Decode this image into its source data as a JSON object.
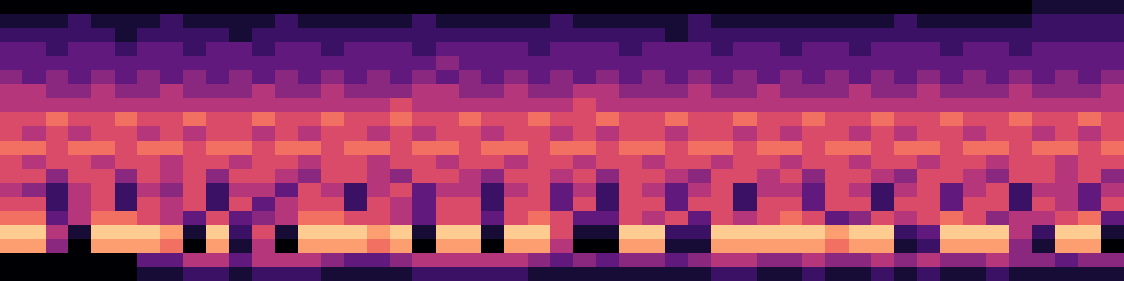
{
  "chart_data": {
    "type": "heatmap",
    "tick_labels": false,
    "color": "magma",
    "color_range": [
      0,
      10
    ],
    "cells": [
      [
        0,
        0,
        0,
        0,
        0,
        0,
        0,
        0,
        0,
        0,
        0,
        0,
        0,
        0,
        0,
        0,
        0,
        0,
        0,
        0,
        0,
        0,
        0,
        0,
        0,
        0,
        0,
        0,
        0,
        0,
        0,
        0,
        0,
        0,
        0,
        0,
        0,
        0,
        0,
        0,
        0,
        0,
        0,
        0,
        0,
        1,
        1,
        1,
        1
      ],
      [
        1,
        1,
        1,
        2,
        1,
        1,
        1,
        2,
        1,
        1,
        1,
        1,
        2,
        1,
        1,
        1,
        1,
        1,
        2,
        1,
        1,
        1,
        1,
        1,
        2,
        1,
        1,
        1,
        1,
        1,
        2,
        1,
        1,
        1,
        1,
        1,
        1,
        1,
        1,
        2,
        1,
        1,
        1,
        1,
        1,
        2,
        2,
        2,
        2
      ],
      [
        2,
        2,
        2,
        2,
        2,
        1,
        2,
        2,
        2,
        2,
        1,
        2,
        2,
        2,
        2,
        2,
        2,
        2,
        2,
        2,
        2,
        2,
        2,
        2,
        2,
        2,
        2,
        2,
        2,
        1,
        2,
        2,
        2,
        2,
        2,
        2,
        2,
        2,
        2,
        2,
        2,
        2,
        2,
        2,
        2,
        2,
        2,
        2,
        2
      ],
      [
        3,
        3,
        2,
        3,
        3,
        2,
        3,
        3,
        2,
        3,
        3,
        2,
        3,
        3,
        2,
        3,
        3,
        3,
        2,
        3,
        3,
        3,
        3,
        2,
        3,
        3,
        3,
        2,
        3,
        3,
        3,
        2,
        3,
        3,
        2,
        3,
        3,
        2,
        3,
        3,
        3,
        2,
        3,
        3,
        2,
        3,
        3,
        3,
        3
      ],
      [
        3,
        3,
        3,
        3,
        3,
        3,
        3,
        3,
        3,
        3,
        3,
        3,
        3,
        3,
        3,
        3,
        3,
        3,
        3,
        4,
        3,
        3,
        3,
        3,
        3,
        3,
        3,
        3,
        3,
        3,
        3,
        3,
        3,
        3,
        3,
        3,
        3,
        3,
        3,
        3,
        3,
        3,
        3,
        3,
        3,
        3,
        3,
        3,
        3
      ],
      [
        4,
        3,
        4,
        3,
        4,
        3,
        4,
        3,
        4,
        3,
        4,
        3,
        4,
        3,
        4,
        3,
        4,
        3,
        4,
        3,
        4,
        3,
        4,
        3,
        4,
        3,
        4,
        3,
        4,
        3,
        4,
        3,
        4,
        3,
        4,
        3,
        4,
        3,
        4,
        3,
        4,
        3,
        4,
        3,
        4,
        3,
        4,
        3,
        4
      ],
      [
        5,
        5,
        4,
        4,
        5,
        4,
        4,
        5,
        4,
        4,
        4,
        5,
        4,
        4,
        5,
        4,
        4,
        4,
        5,
        5,
        4,
        4,
        5,
        4,
        4,
        5,
        5,
        4,
        4,
        4,
        5,
        4,
        4,
        5,
        4,
        4,
        4,
        5,
        4,
        4,
        5,
        4,
        4,
        4,
        5,
        4,
        4,
        4,
        5
      ],
      [
        5,
        5,
        5,
        5,
        5,
        5,
        5,
        5,
        5,
        5,
        5,
        5,
        5,
        5,
        5,
        5,
        5,
        6,
        5,
        5,
        5,
        5,
        5,
        5,
        5,
        6,
        5,
        5,
        5,
        5,
        5,
        5,
        5,
        5,
        5,
        5,
        5,
        5,
        5,
        5,
        5,
        5,
        5,
        5,
        5,
        5,
        5,
        5,
        5
      ],
      [
        6,
        6,
        7,
        6,
        6,
        7,
        6,
        6,
        7,
        6,
        6,
        7,
        6,
        6,
        7,
        6,
        6,
        7,
        6,
        6,
        7,
        6,
        6,
        7,
        6,
        6,
        7,
        6,
        6,
        7,
        6,
        6,
        7,
        6,
        6,
        7,
        6,
        6,
        7,
        6,
        6,
        7,
        6,
        6,
        7,
        6,
        6,
        7,
        6
      ],
      [
        6,
        5,
        6,
        5,
        6,
        6,
        5,
        6,
        5,
        6,
        6,
        5,
        6,
        5,
        6,
        6,
        5,
        6,
        5,
        6,
        6,
        5,
        6,
        6,
        5,
        6,
        5,
        6,
        6,
        5,
        6,
        6,
        5,
        6,
        5,
        6,
        6,
        5,
        6,
        5,
        6,
        6,
        5,
        6,
        6,
        5,
        6,
        5,
        6
      ],
      [
        7,
        7,
        6,
        7,
        7,
        6,
        7,
        7,
        6,
        7,
        7,
        6,
        7,
        7,
        6,
        7,
        7,
        6,
        7,
        7,
        6,
        7,
        7,
        6,
        7,
        7,
        6,
        7,
        7,
        6,
        7,
        7,
        6,
        7,
        7,
        6,
        7,
        7,
        6,
        7,
        7,
        6,
        7,
        7,
        6,
        7,
        7,
        6,
        7
      ],
      [
        6,
        5,
        6,
        6,
        5,
        6,
        6,
        5,
        6,
        6,
        5,
        6,
        6,
        5,
        6,
        6,
        5,
        6,
        6,
        5,
        6,
        6,
        5,
        6,
        6,
        5,
        6,
        6,
        5,
        6,
        6,
        5,
        6,
        6,
        5,
        6,
        6,
        5,
        6,
        6,
        5,
        6,
        6,
        5,
        6,
        6,
        5,
        6,
        6
      ],
      [
        6,
        6,
        4,
        6,
        6,
        4,
        6,
        5,
        6,
        4,
        6,
        6,
        5,
        4,
        6,
        6,
        5,
        4,
        6,
        6,
        5,
        4,
        6,
        6,
        5,
        6,
        4,
        6,
        6,
        5,
        4,
        6,
        6,
        5,
        6,
        4,
        6,
        6,
        5,
        4,
        6,
        6,
        5,
        4,
        6,
        6,
        5,
        6,
        4
      ],
      [
        5,
        4,
        2,
        5,
        6,
        2,
        5,
        4,
        6,
        2,
        5,
        5,
        3,
        6,
        5,
        2,
        5,
        6,
        3,
        5,
        5,
        2,
        5,
        6,
        3,
        5,
        2,
        6,
        5,
        3,
        5,
        6,
        2,
        5,
        5,
        3,
        6,
        5,
        2,
        5,
        6,
        3,
        5,
        6,
        2,
        5,
        5,
        3,
        5
      ],
      [
        6,
        6,
        2,
        5,
        6,
        2,
        6,
        5,
        6,
        2,
        6,
        3,
        5,
        6,
        6,
        2,
        6,
        5,
        3,
        6,
        6,
        2,
        6,
        6,
        3,
        6,
        2,
        6,
        6,
        3,
        6,
        6,
        2,
        6,
        6,
        3,
        6,
        6,
        2,
        6,
        6,
        3,
        6,
        6,
        2,
        6,
        5,
        3,
        6
      ],
      [
        7,
        7,
        3,
        5,
        7,
        7,
        6,
        5,
        3,
        6,
        3,
        4,
        5,
        7,
        7,
        6,
        6,
        5,
        3,
        6,
        6,
        3,
        6,
        7,
        6,
        3,
        3,
        6,
        5,
        6,
        3,
        6,
        5,
        6,
        7,
        6,
        3,
        4,
        6,
        5,
        6,
        7,
        6,
        4,
        5,
        5,
        6,
        7,
        3
      ],
      [
        9,
        9,
        5,
        1,
        9,
        9,
        9,
        8,
        1,
        9,
        2,
        6,
        1,
        9,
        9,
        9,
        8,
        9,
        1,
        9,
        9,
        1,
        9,
        9,
        6,
        1,
        1,
        9,
        9,
        2,
        2,
        9,
        9,
        9,
        9,
        9,
        8,
        9,
        9,
        2,
        3,
        9,
        9,
        9,
        5,
        2,
        9,
        9,
        1
      ],
      [
        8,
        8,
        4,
        0,
        8,
        8,
        8,
        7,
        0,
        8,
        1,
        5,
        0,
        8,
        8,
        8,
        7,
        8,
        0,
        8,
        8,
        0,
        8,
        8,
        5,
        0,
        0,
        8,
        8,
        1,
        1,
        8,
        8,
        8,
        8,
        8,
        7,
        8,
        8,
        1,
        2,
        8,
        8,
        8,
        4,
        1,
        8,
        8,
        0
      ],
      [
        0,
        0,
        0,
        0,
        0,
        0,
        3,
        3,
        5,
        5,
        3,
        5,
        5,
        5,
        4,
        3,
        3,
        4,
        5,
        5,
        5,
        5,
        5,
        4,
        3,
        4,
        3,
        4,
        4,
        3,
        4,
        5,
        5,
        4,
        4,
        5,
        4,
        4,
        5,
        4,
        5,
        4,
        4,
        5,
        4,
        4,
        3,
        4,
        4
      ],
      [
        0,
        0,
        0,
        0,
        0,
        0,
        1,
        1,
        2,
        2,
        1,
        2,
        2,
        2,
        1,
        1,
        1,
        1,
        2,
        2,
        2,
        2,
        2,
        1,
        1,
        1,
        1,
        1,
        1,
        1,
        1,
        2,
        2,
        1,
        1,
        2,
        1,
        1,
        2,
        1,
        2,
        1,
        1,
        2,
        1,
        1,
        1,
        1,
        1
      ]
    ]
  }
}
